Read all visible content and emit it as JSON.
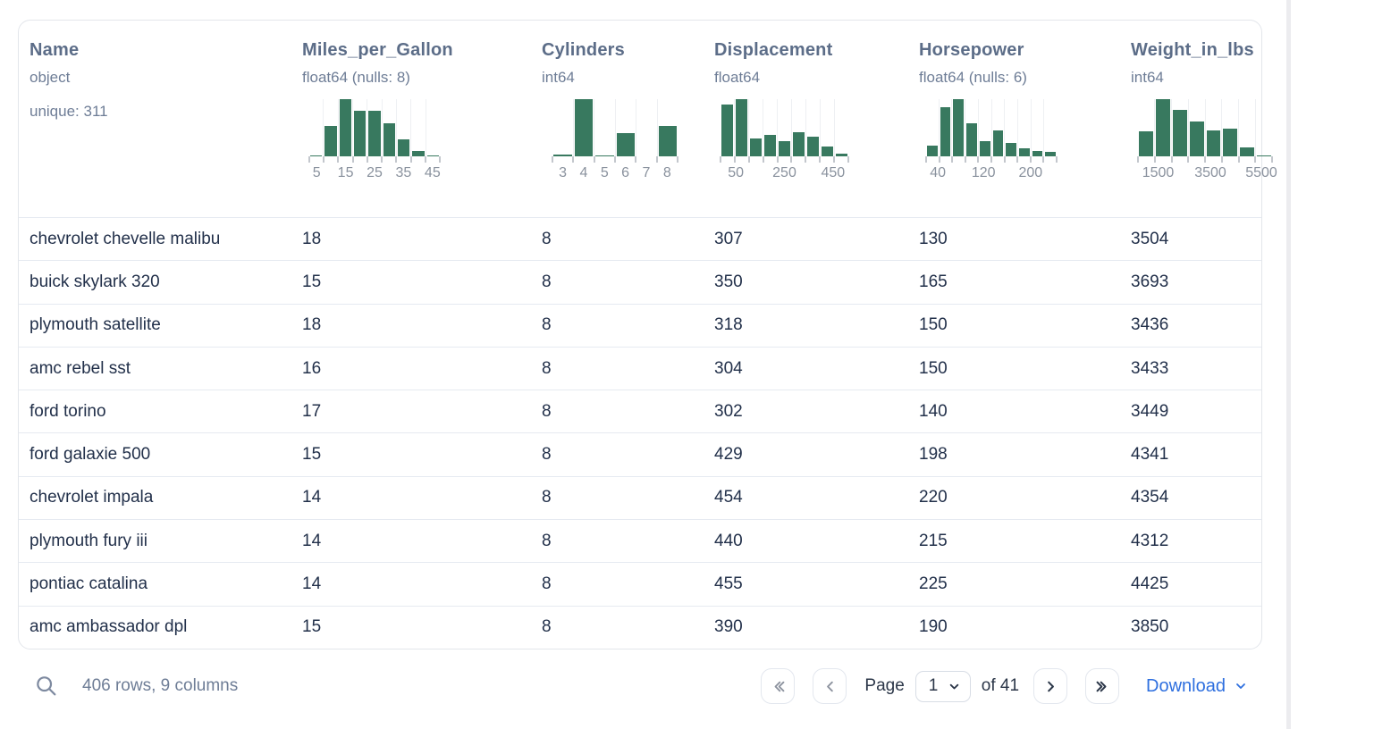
{
  "colors": {
    "histogram_bar": "#38795f",
    "accent_blue": "#2e6fdf"
  },
  "table": {
    "columns": [
      {
        "title": "Name",
        "dtype": "object",
        "extra": "unique: 311",
        "histogram": null
      },
      {
        "title": "Miles_per_Gallon",
        "dtype": "float64 (nulls: 8)",
        "extra": null,
        "histogram": {
          "type": "bar",
          "bar_heights_pct": [
            2,
            53,
            100,
            80,
            80,
            58,
            29,
            9,
            2
          ],
          "tick_labels": [
            {
              "text": "5",
              "pos": 0.056
            },
            {
              "text": "15",
              "pos": 0.278
            },
            {
              "text": "25",
              "pos": 0.5
            },
            {
              "text": "35",
              "pos": 0.722
            },
            {
              "text": "45",
              "pos": 0.944
            }
          ]
        }
      },
      {
        "title": "Cylinders",
        "dtype": "int64",
        "extra": null,
        "histogram": {
          "type": "bar",
          "bar_heights_pct": [
            3,
            100,
            2,
            41,
            0,
            53
          ],
          "tick_labels": [
            {
              "text": "3",
              "pos": 0.083
            },
            {
              "text": "4",
              "pos": 0.25
            },
            {
              "text": "5",
              "pos": 0.417
            },
            {
              "text": "6",
              "pos": 0.583
            },
            {
              "text": "7",
              "pos": 0.75
            },
            {
              "text": "8",
              "pos": 0.917
            }
          ]
        }
      },
      {
        "title": "Displacement",
        "dtype": "float64",
        "extra": null,
        "histogram": {
          "type": "bar",
          "bar_heights_pct": [
            91,
            100,
            31,
            38,
            26,
            42,
            35,
            17,
            4
          ],
          "tick_labels": [
            {
              "text": "50",
              "pos": 0.12
            },
            {
              "text": "250",
              "pos": 0.5
            },
            {
              "text": "450",
              "pos": 0.88
            }
          ]
        }
      },
      {
        "title": "Horsepower",
        "dtype": "float64 (nulls: 6)",
        "extra": null,
        "histogram": {
          "type": "bar",
          "bar_heights_pct": [
            18,
            86,
            100,
            58,
            26,
            45,
            24,
            14,
            10,
            8
          ],
          "tick_labels": [
            {
              "text": "40",
              "pos": 0.09
            },
            {
              "text": "120",
              "pos": 0.44
            },
            {
              "text": "200",
              "pos": 0.8
            }
          ]
        }
      },
      {
        "title": "Weight_in_lbs",
        "dtype": "int64",
        "extra": null,
        "histogram": {
          "type": "bar",
          "bar_heights_pct": [
            44,
            100,
            82,
            61,
            45,
            49,
            16,
            2
          ],
          "tick_labels": [
            {
              "text": "1500",
              "pos": 0.15
            },
            {
              "text": "3500",
              "pos": 0.54
            },
            {
              "text": "5500",
              "pos": 0.92
            }
          ]
        }
      }
    ],
    "rows": [
      [
        "chevrolet chevelle malibu",
        "18",
        "8",
        "307",
        "130",
        "3504"
      ],
      [
        "buick skylark 320",
        "15",
        "8",
        "350",
        "165",
        "3693"
      ],
      [
        "plymouth satellite",
        "18",
        "8",
        "318",
        "150",
        "3436"
      ],
      [
        "amc rebel sst",
        "16",
        "8",
        "304",
        "150",
        "3433"
      ],
      [
        "ford torino",
        "17",
        "8",
        "302",
        "140",
        "3449"
      ],
      [
        "ford galaxie 500",
        "15",
        "8",
        "429",
        "198",
        "4341"
      ],
      [
        "chevrolet impala",
        "14",
        "8",
        "454",
        "220",
        "4354"
      ],
      [
        "plymouth fury iii",
        "14",
        "8",
        "440",
        "215",
        "4312"
      ],
      [
        "pontiac catalina",
        "14",
        "8",
        "455",
        "225",
        "4425"
      ],
      [
        "amc ambassador dpl",
        "15",
        "8",
        "390",
        "190",
        "3850"
      ]
    ]
  },
  "footer": {
    "summary": "406 rows, 9 columns",
    "page_label": "Page",
    "page_value": "1",
    "total_label": "of 41",
    "download_label": "Download"
  }
}
